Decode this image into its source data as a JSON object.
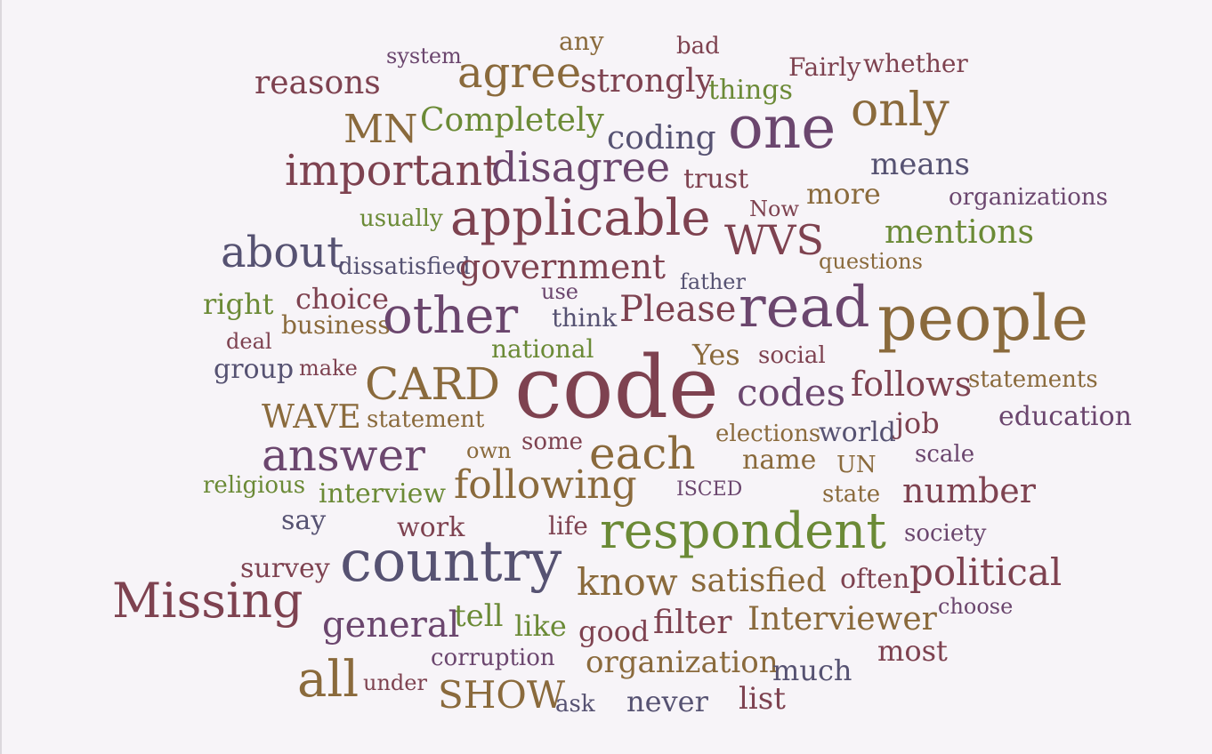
{
  "colors": {
    "red": "#7e4250",
    "olive": "#8a6a3c",
    "green": "#6b8a36",
    "slate": "#565272",
    "plum": "#6b466e",
    "background": "#f7f4f8"
  },
  "words": [
    "system",
    "any",
    "bad",
    "agree",
    "strongly",
    "Fairly",
    "whether",
    "reasons",
    "things",
    "only",
    "MN",
    "Completely",
    "coding",
    "one",
    "important",
    "disagree",
    "means",
    "trust",
    "more",
    "organizations",
    "Now",
    "usually",
    "applicable",
    "WVS",
    "mentions",
    "about",
    "dissatisfied",
    "government",
    "questions",
    "father",
    "right",
    "choice",
    "use",
    "Please",
    "read",
    "people",
    "business",
    "other",
    "think",
    "deal",
    "national",
    "Yes",
    "social",
    "group",
    "make",
    "CARD",
    "code",
    "follows",
    "statements",
    "codes",
    "WAVE",
    "statement",
    "job",
    "education",
    "elections",
    "world",
    "answer",
    "own",
    "some",
    "each",
    "scale",
    "name",
    "UN",
    "religious",
    "interview",
    "following",
    "ISCED",
    "state",
    "number",
    "say",
    "work",
    "life",
    "respondent",
    "society",
    "survey",
    "country",
    "know",
    "satisfied",
    "often",
    "political",
    "Missing",
    "choose",
    "tell",
    "like",
    "general",
    "good",
    "filter",
    "Interviewer",
    "corruption",
    "organization",
    "most",
    "all",
    "under",
    "much",
    "SHOW",
    "ask",
    "never",
    "list"
  ]
}
